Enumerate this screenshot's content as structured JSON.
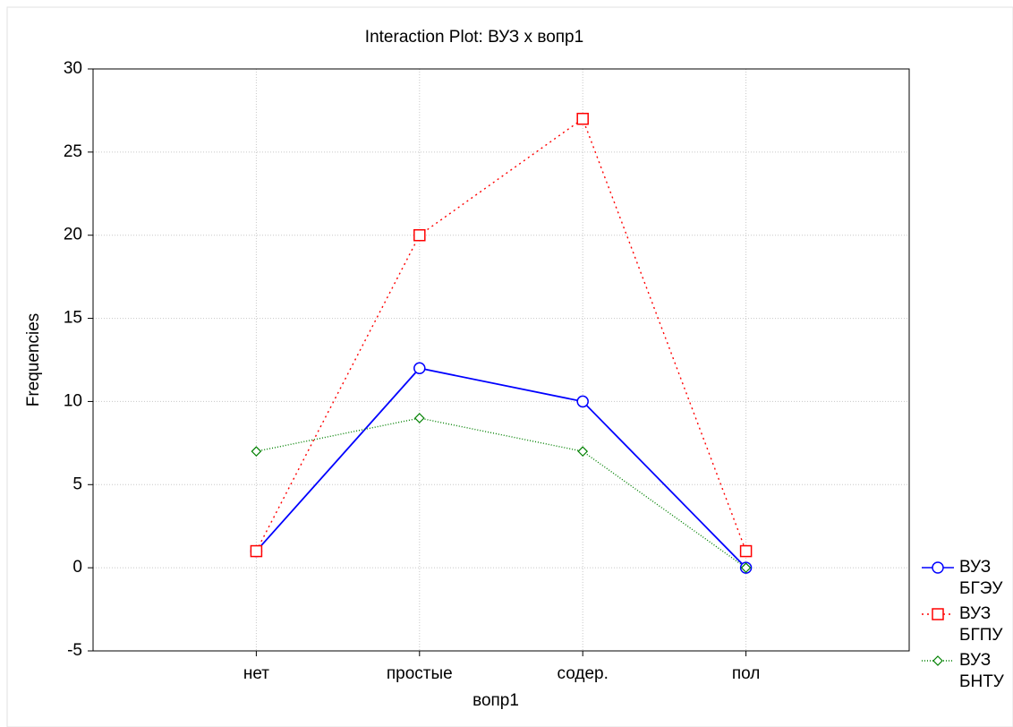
{
  "chart_data": {
    "type": "line",
    "title": "Interaction Plot: ВУЗ x вопр1",
    "x_label": "вопр1",
    "y_label": "Frequencies",
    "categories": [
      "нет",
      "простые",
      "содер.",
      "пол"
    ],
    "series": [
      {
        "name": "ВУЗ БГЭУ",
        "color": "#0000ff",
        "linestyle": "solid",
        "marker": "circle",
        "values": [
          1,
          12,
          10,
          0
        ]
      },
      {
        "name": "ВУЗ БГПУ",
        "color": "#ff0000",
        "linestyle": "dotted",
        "marker": "square",
        "values": [
          1,
          20,
          27,
          1
        ]
      },
      {
        "name": "ВУЗ БНТУ",
        "color": "#008000",
        "linestyle": "dotted",
        "marker": "diamond",
        "values": [
          7,
          9,
          7,
          0
        ]
      }
    ],
    "ylim": [
      -5,
      30
    ],
    "yticks": [
      -5,
      0,
      5,
      10,
      15,
      20,
      25,
      30
    ],
    "grid": true,
    "legend": "right"
  }
}
